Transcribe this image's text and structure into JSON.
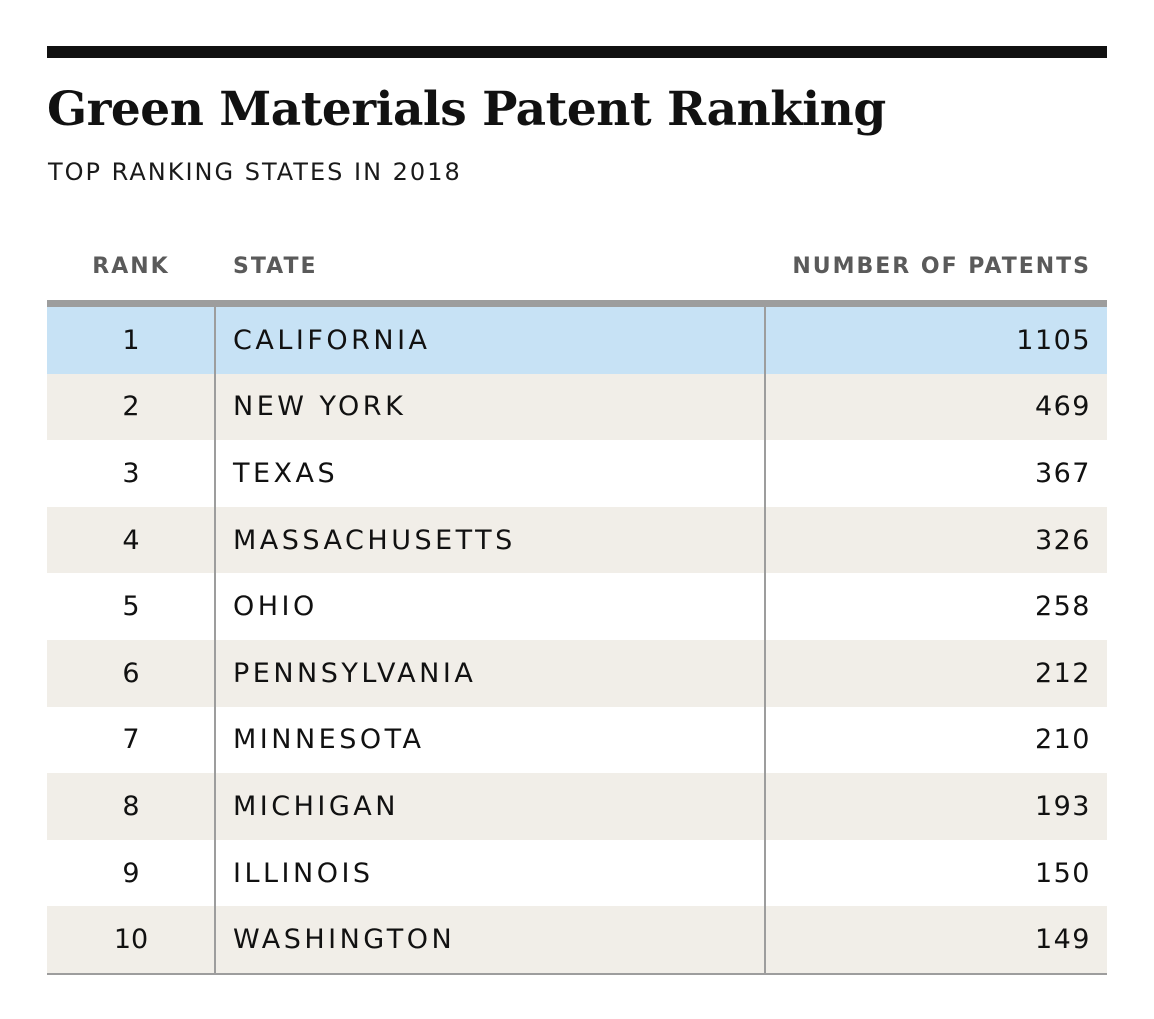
{
  "header": {
    "title": "Green Materials Patent Ranking",
    "subtitle": "TOP RANKING STATES IN 2018"
  },
  "columns": {
    "rank": "RANK",
    "state": "STATE",
    "patents": "NUMBER OF PATENTS"
  },
  "colors": {
    "highlight_row": "#c7e2f5",
    "alt_row": "#f1eee8",
    "rule": "#9d9d9d",
    "top_rule": "#111111"
  },
  "chart_data": {
    "type": "table",
    "title": "Green Materials Patent Ranking",
    "subtitle": "TOP RANKING STATES IN 2018",
    "columns": [
      "RANK",
      "STATE",
      "NUMBER OF PATENTS"
    ],
    "rows": [
      {
        "rank": "1",
        "state": "CALIFORNIA",
        "patents": "1105",
        "highlighted": true
      },
      {
        "rank": "2",
        "state": "NEW YORK",
        "patents": "469"
      },
      {
        "rank": "3",
        "state": "TEXAS",
        "patents": "367"
      },
      {
        "rank": "4",
        "state": "MASSACHUSETTS",
        "patents": "326"
      },
      {
        "rank": "5",
        "state": "OHIO",
        "patents": "258"
      },
      {
        "rank": "6",
        "state": "PENNSYLVANIA",
        "patents": "212"
      },
      {
        "rank": "7",
        "state": "MINNESOTA",
        "patents": "210"
      },
      {
        "rank": "8",
        "state": "MICHIGAN",
        "patents": "193"
      },
      {
        "rank": "9",
        "state": "ILLINOIS",
        "patents": "150"
      },
      {
        "rank": "10",
        "state": "WASHINGTON",
        "patents": "149"
      }
    ]
  }
}
